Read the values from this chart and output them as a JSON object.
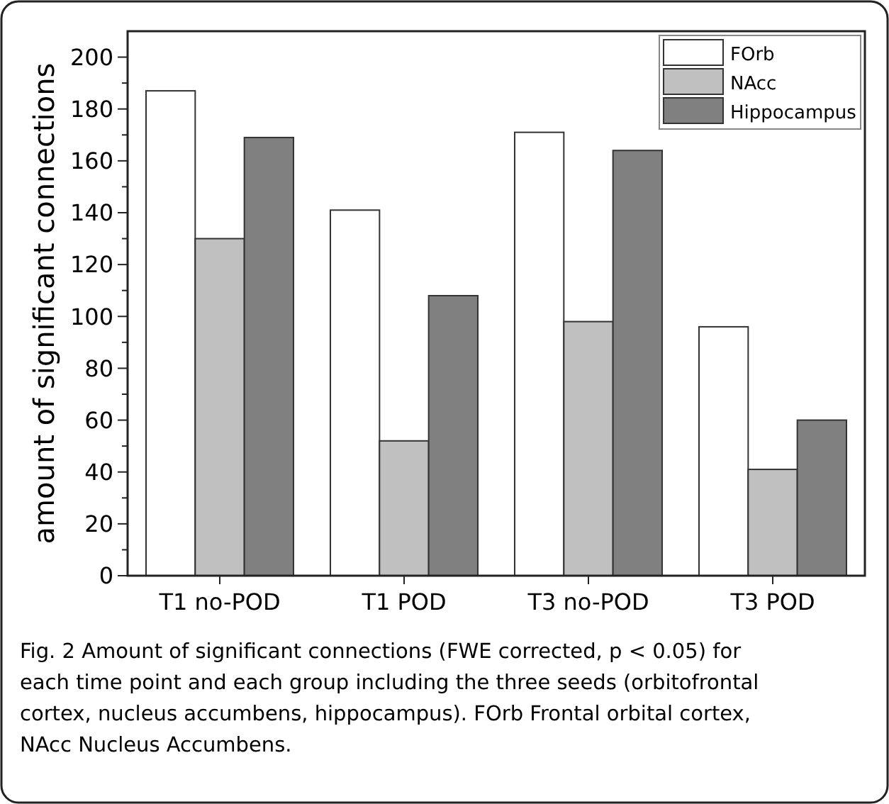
{
  "chart_data": {
    "type": "bar",
    "ylabel": "amount of significant connections",
    "categories": [
      "T1 no-POD",
      "T1 POD",
      "T3 no-POD",
      "T3 POD"
    ],
    "series": [
      {
        "name": "FOrb",
        "color": "#ffffff",
        "values": [
          187,
          141,
          171,
          96
        ]
      },
      {
        "name": "NAcc",
        "color": "#c0c0c0",
        "values": [
          130,
          52,
          98,
          41
        ]
      },
      {
        "name": "Hippocampus",
        "color": "#808080",
        "values": [
          169,
          108,
          164,
          60
        ]
      }
    ],
    "ylim": [
      0,
      210
    ],
    "yticks": [
      0,
      {
        "value": 10,
        "label": null
      },
      20,
      {
        "value": 30,
        "label": null
      },
      40,
      {
        "value": 50,
        "label": null
      },
      60,
      {
        "value": 70,
        "label": null
      },
      80,
      {
        "value": 90,
        "label": null
      },
      100,
      {
        "value": 110,
        "label": null
      },
      120,
      {
        "value": 130,
        "label": null
      },
      140,
      {
        "value": 150,
        "label": null
      },
      160,
      {
        "value": 170,
        "label": null
      },
      180,
      {
        "value": 190,
        "label": null
      },
      200
    ],
    "grid": false,
    "legend": "top right",
    "annotations": [
      "Fig. 2 Amount of significant connections (FWE corrected, p < 0.05) for each time point and each group including the three seeds (orbitofrontal cortex, nucleus accumbens, hippocampus). FOrb Frontal orbital cortex, NAcc Nucleus Accumbens."
    ]
  }
}
